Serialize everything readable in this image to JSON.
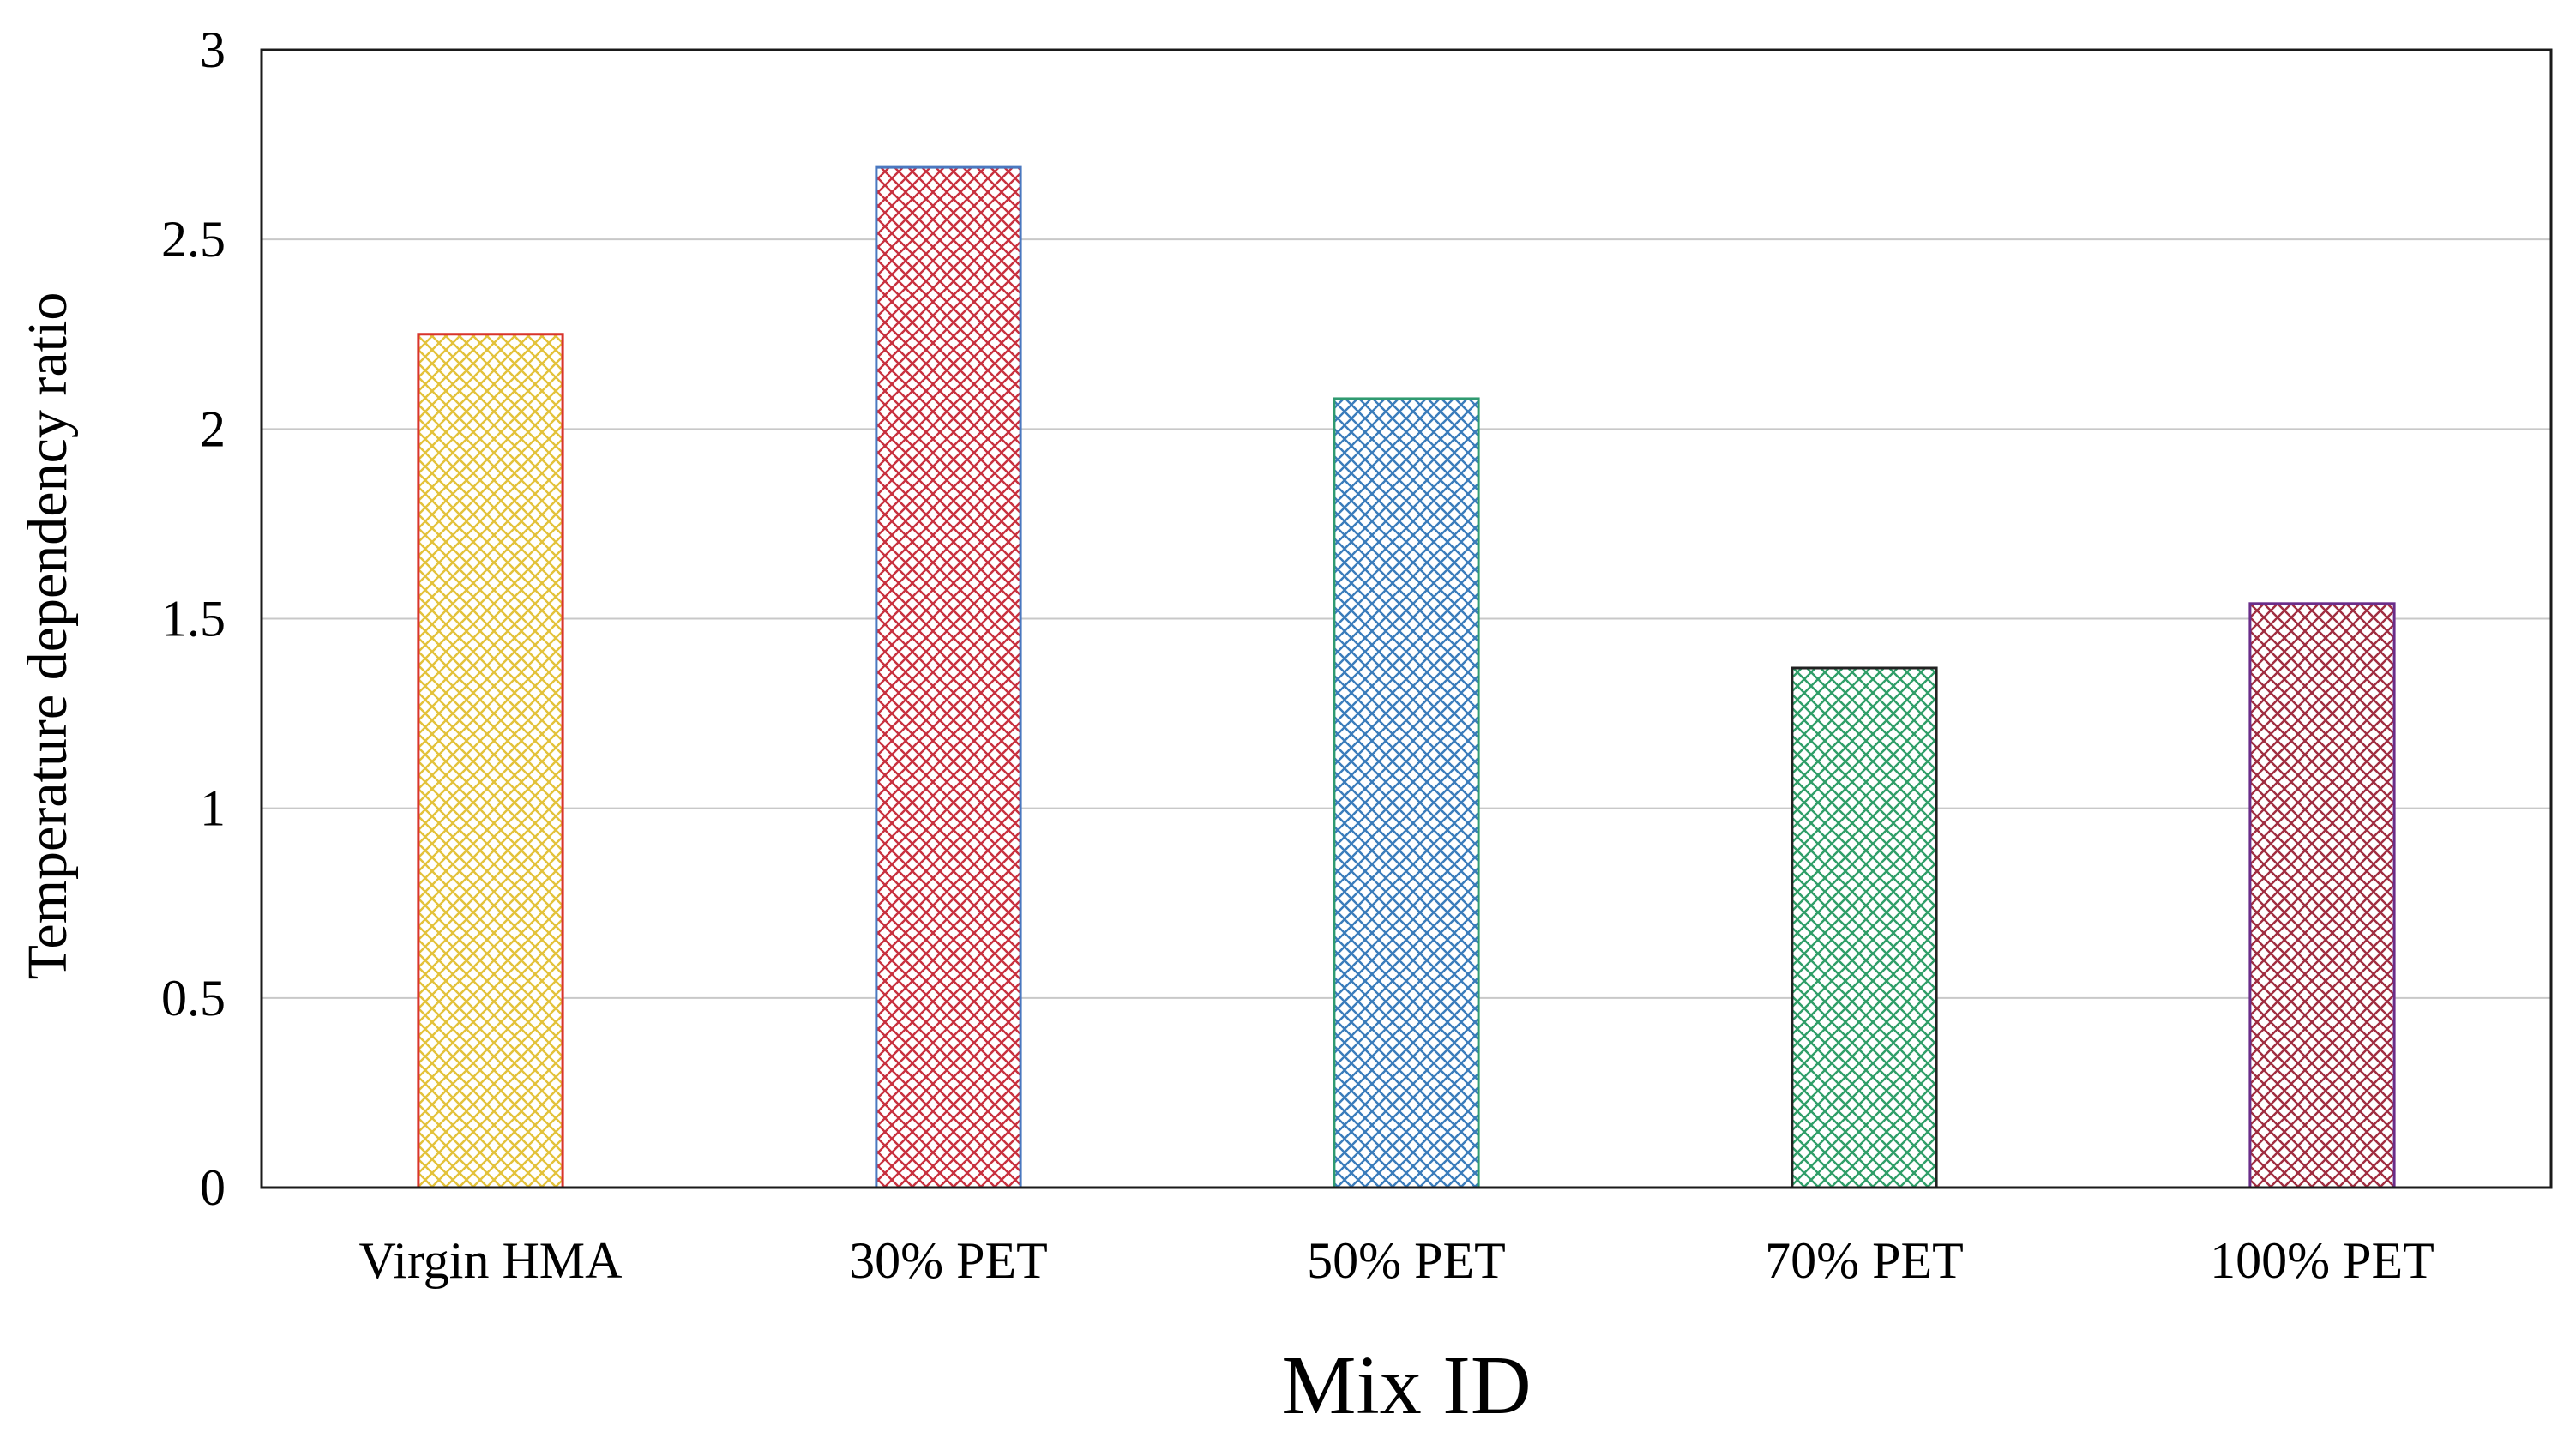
{
  "chart_data": {
    "type": "bar",
    "title": "",
    "xlabel": "Mix ID",
    "ylabel": "Temperature dependency ratio",
    "categories": [
      "Virgin HMA",
      "30% PET",
      "50% PET",
      "70% PET",
      "100% PET"
    ],
    "values": [
      2.25,
      2.69,
      2.08,
      1.37,
      1.54
    ],
    "ylim": [
      0,
      3
    ],
    "yticks": [
      "0",
      "0.5",
      "1",
      "1.5",
      "2",
      "2.5",
      "3"
    ],
    "grid": true,
    "legend": "none",
    "bar_styles": [
      {
        "fill": "#f2d24a",
        "hatch": "#e3c23a",
        "border": "#d8342c"
      },
      {
        "fill": "#d94a55",
        "hatch": "#c8303e",
        "border": "#4a78c0"
      },
      {
        "fill": "#4a8cc9",
        "hatch": "#3a7cbb",
        "border": "#2f9a70"
      },
      {
        "fill": "#3fae78",
        "hatch": "#2f9e68",
        "border": "#222222"
      },
      {
        "fill": "#b03a4e",
        "hatch": "#a02d40",
        "border": "#6a2d8a"
      }
    ]
  }
}
